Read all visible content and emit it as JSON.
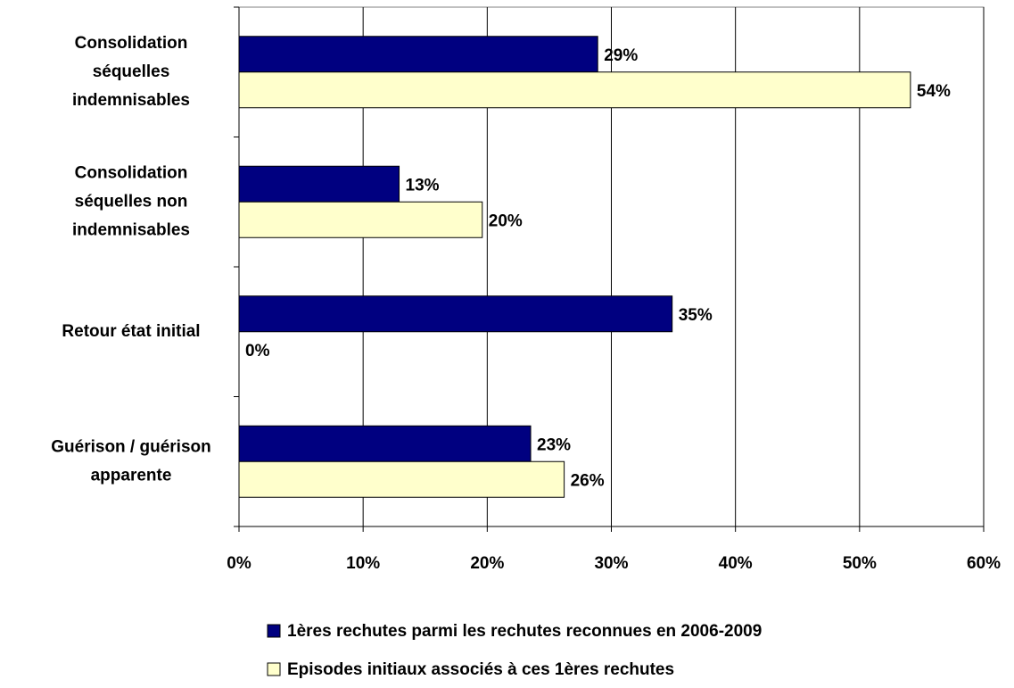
{
  "chart_data": {
    "type": "hbar",
    "categories": [
      [
        "Consolidation",
        "séquelles",
        "indemnisables"
      ],
      [
        "Consolidation",
        "séquelles non",
        "indemnisables"
      ],
      [
        "Retour état initial"
      ],
      [
        "Guérison / guérison",
        "apparente"
      ]
    ],
    "series": [
      {
        "name": "1ères rechutes parmi les rechutes reconnues en 2006-2009",
        "color": "#000080",
        "label_color": "#1a1a80",
        "values": [
          28.9,
          12.9,
          34.9,
          23.5
        ],
        "value_labels": [
          "29%",
          "13%",
          "35%",
          "23%"
        ]
      },
      {
        "name": "Episodes initiaux associés à ces 1ères rechutes",
        "color": "#ffffcc",
        "label_color": "#000000",
        "values": [
          54.1,
          19.6,
          0,
          26.2
        ],
        "value_labels": [
          "54%",
          "20%",
          "0%",
          "26%"
        ]
      }
    ],
    "xlim": [
      0,
      60
    ],
    "xticks": [
      {
        "value": 0,
        "label": "0%"
      },
      {
        "value": 10,
        "label": "10%"
      },
      {
        "value": 20,
        "label": "20%"
      },
      {
        "value": 30,
        "label": "30%"
      },
      {
        "value": 40,
        "label": "40%"
      },
      {
        "value": 50,
        "label": "50%"
      },
      {
        "value": 60,
        "label": "60%"
      }
    ],
    "grid": true
  }
}
